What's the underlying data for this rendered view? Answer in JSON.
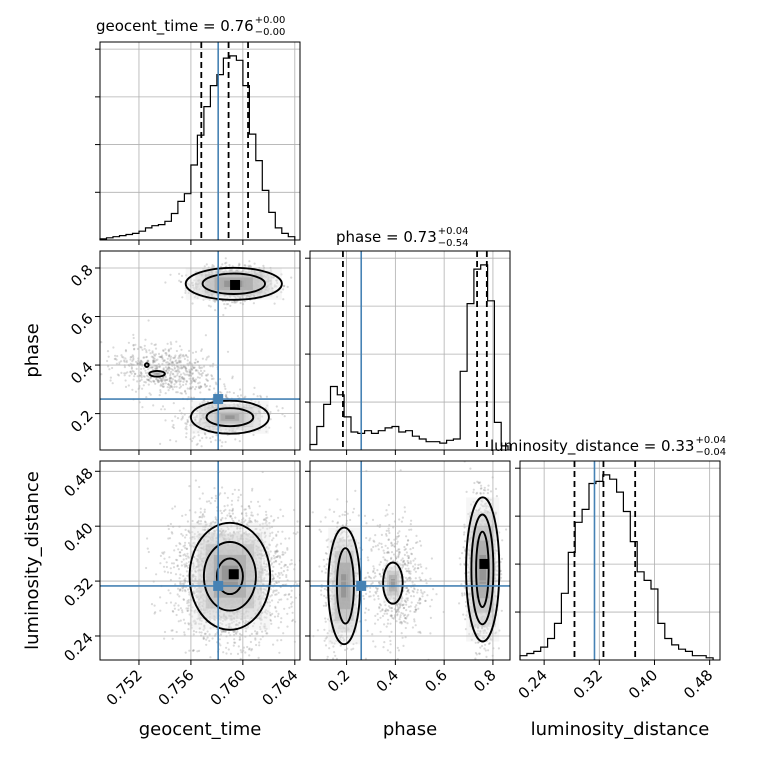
{
  "chart_data": {
    "type": "corner",
    "parameters": [
      "geocent_time",
      "phase",
      "luminosity_distance"
    ],
    "truths": {
      "geocent_time": 0.7581,
      "phase": 0.26,
      "luminosity_distance": 0.313
    },
    "titles": [
      {
        "param": "geocent_time",
        "text": "geocent_time = 0.76",
        "plus": "+0.00",
        "minus": "−0.00",
        "median": 0.7589,
        "q_low": 0.7568,
        "q_high": 0.7604
      },
      {
        "param": "phase",
        "text": "phase = 0.73",
        "plus": "+0.04",
        "minus": "−0.54",
        "median": 0.735,
        "q_low": 0.185,
        "q_high": 0.775
      },
      {
        "param": "luminosity_distance",
        "text": "luminosity_distance = 0.33",
        "plus": "+0.04",
        "minus": "−0.04",
        "median": 0.326,
        "q_low": 0.284,
        "q_high": 0.372
      }
    ],
    "axes": {
      "geocent_time": {
        "range": [
          0.749,
          0.7644
        ],
        "ticks": [
          "0.752",
          "0.756",
          "0.760",
          "0.764"
        ],
        "tick_values": [
          0.752,
          0.756,
          0.76,
          0.764
        ]
      },
      "phase": {
        "range": [
          0.05,
          0.87
        ],
        "ticks": [
          "0.2",
          "0.4",
          "0.6",
          "0.8"
        ],
        "tick_values": [
          0.2,
          0.4,
          0.6,
          0.8
        ]
      },
      "luminosity_distance": {
        "range": [
          0.205,
          0.495
        ],
        "ticks": [
          "0.24",
          "0.32",
          "0.40",
          "0.48"
        ],
        "tick_values": [
          0.24,
          0.32,
          0.4,
          0.48
        ]
      }
    },
    "marginals": {
      "geocent_time": {
        "edges": [
          0.749,
          0.7495,
          0.75,
          0.7505,
          0.751,
          0.7515,
          0.752,
          0.7525,
          0.753,
          0.7535,
          0.754,
          0.7545,
          0.755,
          0.7555,
          0.756,
          0.7565,
          0.757,
          0.7575,
          0.758,
          0.7585,
          0.759,
          0.7595,
          0.76,
          0.7605,
          0.761,
          0.7615,
          0.762,
          0.7625,
          0.763,
          0.7635,
          0.764
        ],
        "counts": [
          1,
          2,
          3,
          4,
          5,
          6,
          8,
          11,
          13,
          14,
          17,
          24,
          35,
          42,
          68,
          95,
          121,
          140,
          150,
          165,
          167,
          163,
          140,
          96,
          72,
          45,
          25,
          11,
          6,
          3
        ]
      },
      "phase": {
        "edges": [
          0.05,
          0.078,
          0.106,
          0.134,
          0.162,
          0.19,
          0.218,
          0.246,
          0.274,
          0.302,
          0.33,
          0.358,
          0.386,
          0.414,
          0.442,
          0.47,
          0.498,
          0.526,
          0.554,
          0.582,
          0.61,
          0.638,
          0.666,
          0.694,
          0.722,
          0.75,
          0.778,
          0.806,
          0.834,
          0.862
        ],
        "counts": [
          4,
          17,
          33,
          46,
          40,
          24,
          13,
          12,
          14,
          12,
          14,
          16,
          17,
          13,
          14,
          10,
          8,
          6,
          6,
          5,
          7,
          8,
          57,
          106,
          131,
          134,
          108,
          20,
          3
        ]
      },
      "luminosity_distance": {
        "edges": [
          0.205,
          0.215,
          0.225,
          0.235,
          0.245,
          0.255,
          0.265,
          0.275,
          0.285,
          0.295,
          0.305,
          0.315,
          0.325,
          0.335,
          0.345,
          0.355,
          0.365,
          0.375,
          0.385,
          0.395,
          0.405,
          0.415,
          0.425,
          0.435,
          0.445,
          0.455,
          0.465,
          0.475,
          0.485
        ],
        "counts": [
          2,
          3,
          4,
          6,
          10,
          17,
          31,
          50,
          64,
          70,
          82,
          83,
          86,
          84,
          78,
          69,
          55,
          41,
          37,
          33,
          17,
          10,
          7,
          5,
          4,
          2,
          2,
          1
        ]
      }
    },
    "samples_2d": [
      {
        "x": "geocent_time",
        "y": "phase",
        "clusters": [
          {
            "mean": [
              0.7593,
              0.735
            ],
            "sd": [
              0.0014,
              0.032
            ],
            "rot": 0.0,
            "weight": 0.55
          },
          {
            "mean": [
              0.7584,
              0.19
            ],
            "sd": [
              0.0017,
              0.045
            ],
            "rot": 0.35,
            "weight": 0.22
          },
          {
            "mean": [
              0.754,
              0.38
            ],
            "sd": [
              0.0022,
              0.05
            ],
            "rot": -0.55,
            "weight": 0.23
          }
        ],
        "density_peaks": [
          [
            0.7594,
            0.73
          ]
        ],
        "contours": [
          {
            "cx": 0.7593,
            "cy": 0.735,
            "rx": 0.0024,
            "ry": 0.042
          },
          {
            "cx": 0.7593,
            "cy": 0.735,
            "rx": 0.0037,
            "ry": 0.066
          },
          {
            "cx": 0.759,
            "cy": 0.185,
            "rx": 0.003,
            "ry": 0.068
          },
          {
            "cx": 0.759,
            "cy": 0.185,
            "rx": 0.0018,
            "ry": 0.037
          },
          {
            "cx": 0.7534,
            "cy": 0.364,
            "rx": 0.0006,
            "ry": 0.012
          },
          {
            "cx": 0.7526,
            "cy": 0.4,
            "rx": 0.00015,
            "ry": 0.008
          }
        ]
      },
      {
        "x": "geocent_time",
        "y": "luminosity_distance",
        "clusters": [
          {
            "mean": [
              0.759,
              0.327
            ],
            "sd": [
              0.0021,
              0.046
            ],
            "rot": 0.0,
            "weight": 1.0
          }
        ],
        "density_peaks": [
          [
            0.7593,
            0.33
          ]
        ],
        "contours": [
          {
            "cx": 0.759,
            "cy": 0.327,
            "rx": 0.001,
            "ry": 0.026
          },
          {
            "cx": 0.759,
            "cy": 0.327,
            "rx": 0.002,
            "ry": 0.05
          },
          {
            "cx": 0.759,
            "cy": 0.327,
            "rx": 0.0031,
            "ry": 0.078
          }
        ]
      },
      {
        "x": "phase",
        "y": "luminosity_distance",
        "clusters": [
          {
            "mean": [
              0.755,
              0.335
            ],
            "sd": [
              0.03,
              0.05
            ],
            "rot": 0.0,
            "weight": 0.55
          },
          {
            "mean": [
              0.18,
              0.315
            ],
            "sd": [
              0.035,
              0.05
            ],
            "rot": 0.0,
            "weight": 0.25
          },
          {
            "mean": [
              0.4,
              0.32
            ],
            "sd": [
              0.06,
              0.045
            ],
            "rot": 0.0,
            "weight": 0.2
          }
        ],
        "density_peaks": [
          [
            0.765,
            0.345
          ]
        ],
        "contours": [
          {
            "cx": 0.757,
            "cy": 0.337,
            "rx": 0.026,
            "ry": 0.055
          },
          {
            "cx": 0.757,
            "cy": 0.337,
            "rx": 0.045,
            "ry": 0.08
          },
          {
            "cx": 0.758,
            "cy": 0.337,
            "rx": 0.068,
            "ry": 0.105
          },
          {
            "cx": 0.195,
            "cy": 0.313,
            "rx": 0.035,
            "ry": 0.055
          },
          {
            "cx": 0.19,
            "cy": 0.313,
            "rx": 0.065,
            "ry": 0.085
          },
          {
            "cx": 0.39,
            "cy": 0.317,
            "rx": 0.04,
            "ry": 0.03
          }
        ]
      }
    ]
  }
}
